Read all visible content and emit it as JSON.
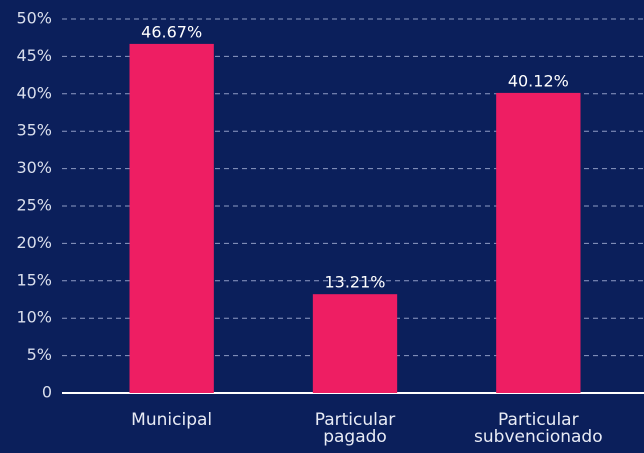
{
  "chart_data": {
    "type": "bar",
    "categories": [
      "Municipal",
      "Particular pagado",
      "Particular subvencionado"
    ],
    "values": [
      46.67,
      13.21,
      40.12
    ],
    "value_labels": [
      "46.67%",
      "13.21%",
      "40.12%"
    ],
    "color": "#ee1e63",
    "ylim": [
      0,
      50
    ],
    "yticks": [
      0,
      {
        "value": 5,
        "label": "5%"
      },
      {
        "value": 10,
        "label": "10%"
      },
      {
        "value": 15,
        "label": "15%"
      },
      {
        "value": 20,
        "label": "20%"
      },
      {
        "value": 25,
        "label": "25%"
      },
      {
        "value": 30,
        "label": "30%"
      },
      {
        "value": 35,
        "label": "35%"
      },
      {
        "value": 40,
        "label": "40%"
      },
      {
        "value": 45,
        "label": "45%"
      },
      {
        "value": 50,
        "label": "50%"
      }
    ],
    "grid": true
  }
}
